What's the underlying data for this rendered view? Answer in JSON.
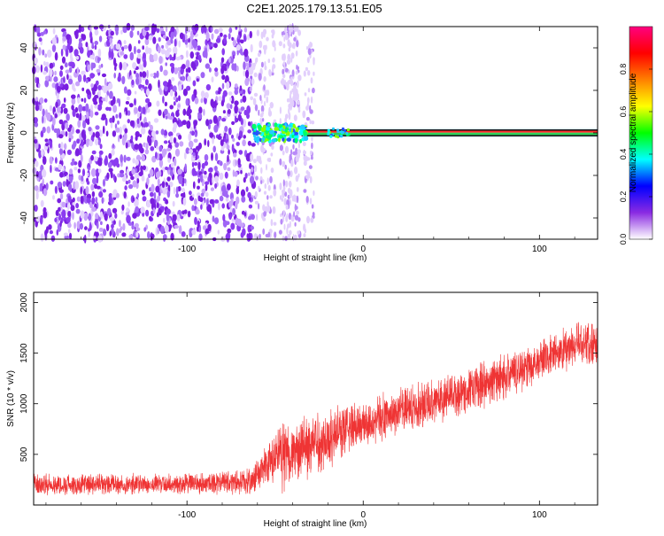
{
  "title": "C2E1.2025.179.13.51.E05",
  "chart_data": [
    {
      "type": "heatmap",
      "xlabel": "Height of straight line (km)",
      "ylabel": "Frequency (Hz)",
      "xlim": [
        -187,
        133
      ],
      "ylim": [
        -50,
        50
      ],
      "xticks": [
        -100,
        0,
        100
      ],
      "yticks": [
        -40,
        -20,
        0,
        20,
        40
      ],
      "noise_region_x": [
        -187,
        -62
      ],
      "signal_band_hz": [
        -1,
        1
      ],
      "colorbar": {
        "label": "Normalized spectral amplitude",
        "range": [
          0,
          1
        ],
        "ticks": [
          0.0,
          0.2,
          0.4,
          0.6,
          0.8
        ],
        "colors": [
          "#ffffff",
          "#8a2be2",
          "#0000ff",
          "#00ffff",
          "#00ff00",
          "#ffff00",
          "#ff8000",
          "#ff0000",
          "#ff0080"
        ]
      }
    },
    {
      "type": "line",
      "xlabel": "Height of straight line (km)",
      "ylabel": "SNR (10 * v/v)",
      "xlim": [
        -187,
        133
      ],
      "ylim": [
        0,
        2100
      ],
      "xticks": [
        -100,
        0,
        100
      ],
      "yticks": [
        500,
        1000,
        1500,
        2000
      ],
      "series": [
        {
          "color": "#ef3434",
          "x": [
            -187,
            -150,
            -100,
            -64,
            -55,
            -45,
            -40,
            -30,
            -20,
            -10,
            0,
            20,
            40,
            60,
            80,
            100,
            120,
            133
          ],
          "y_mean": [
            200,
            200,
            210,
            230,
            380,
            520,
            500,
            600,
            650,
            760,
            800,
            920,
            1030,
            1130,
            1270,
            1420,
            1580,
            1620
          ],
          "y_spread": [
            120,
            120,
            120,
            140,
            250,
            420,
            300,
            380,
            350,
            300,
            260,
            260,
            260,
            260,
            260,
            240,
            260,
            280
          ]
        }
      ]
    }
  ]
}
